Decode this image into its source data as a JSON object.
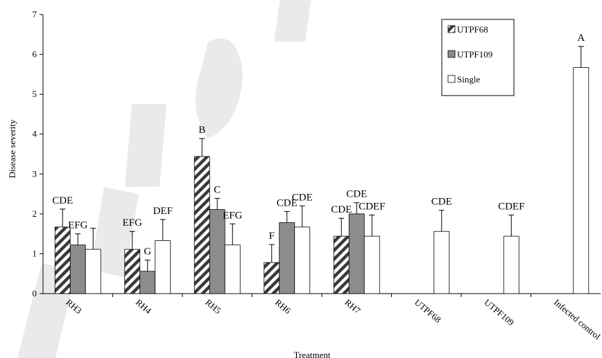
{
  "chart_data": {
    "type": "bar",
    "title": "",
    "xlabel": "Treatment",
    "ylabel": "Disease severity",
    "ylim": [
      0,
      7
    ],
    "yticks": [
      0,
      1,
      2,
      3,
      4,
      5,
      6,
      7
    ],
    "grid": false,
    "legend_position": "top-right",
    "categories": [
      "RH3",
      "RH4",
      "RH5",
      "RH6",
      "RH7",
      "UTPF68",
      "UTPF109",
      "Infected control"
    ],
    "series": [
      {
        "name": "UTPF68",
        "pattern": "hatched",
        "values": [
          1.67,
          1.11,
          3.44,
          0.78,
          1.44,
          null,
          null,
          null
        ],
        "errors": [
          0.45,
          0.45,
          0.45,
          0.45,
          0.45,
          null,
          null,
          null
        ],
        "labels": [
          "CDE",
          "EFG",
          "B",
          "F",
          "CDE",
          "",
          "",
          ""
        ]
      },
      {
        "name": "UTPF109",
        "pattern": "gray",
        "values": [
          1.22,
          0.56,
          2.11,
          1.78,
          2.0,
          null,
          null,
          null
        ],
        "errors": [
          0.28,
          0.28,
          0.28,
          0.28,
          0.28,
          null,
          null,
          null
        ],
        "labels": [
          "EFG",
          "G",
          "C",
          "CDE",
          "CDE",
          "",
          "",
          ""
        ]
      },
      {
        "name": "Single",
        "pattern": "white",
        "values": [
          1.11,
          1.33,
          1.22,
          1.67,
          1.44,
          1.56,
          1.44,
          5.67
        ],
        "errors": [
          0.53,
          0.53,
          0.53,
          0.53,
          0.53,
          0.53,
          0.53,
          0.53
        ],
        "labels": [
          "",
          "DEF",
          "EFG",
          "CDE",
          "CDEF",
          "CDE",
          "CDEF",
          "A"
        ]
      }
    ],
    "colors": {
      "hatch": "#3a3a3a",
      "gray": "#8c8c8c",
      "white": "#ffffff",
      "axis": "#000000"
    }
  }
}
